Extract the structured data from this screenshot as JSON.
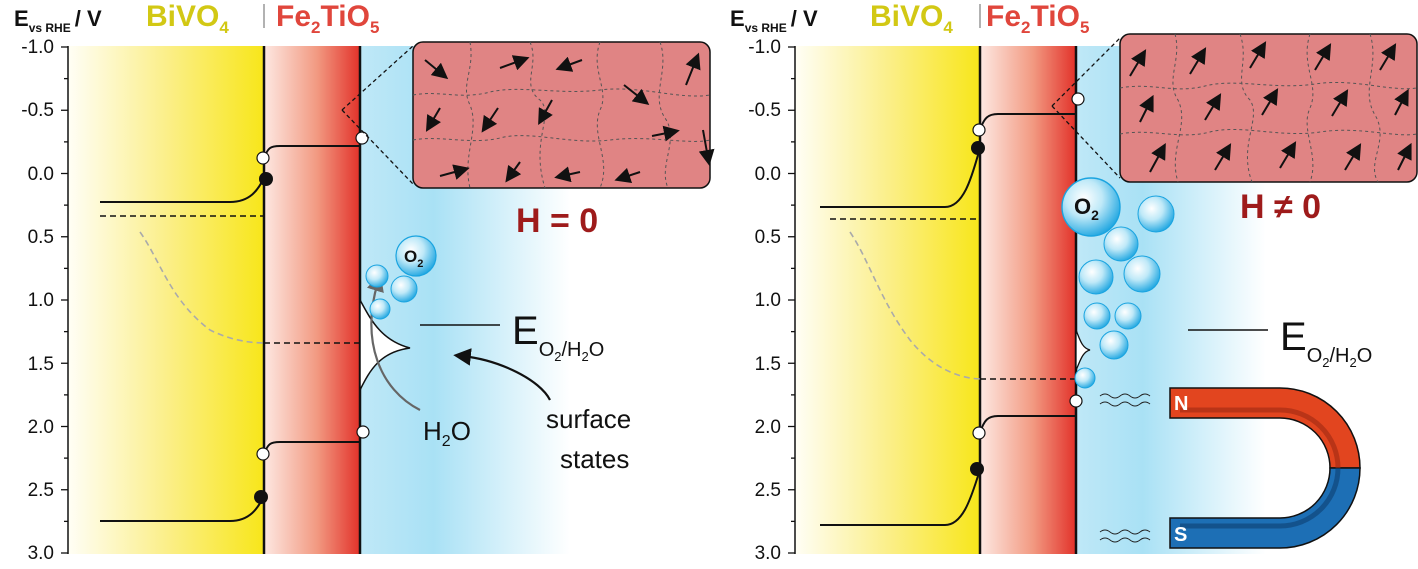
{
  "axis": {
    "label_main": "E",
    "label_sub": "vs RHE",
    "label_unit": "/ V",
    "ticks": [
      "-1.0",
      "-0.5",
      "0.0",
      "0.5",
      "1.0",
      "1.5",
      "2.0",
      "2.5",
      "3.0"
    ]
  },
  "materials": {
    "bivo4_base": "BiVO",
    "bivo4_sub": "4",
    "fe_a": "Fe",
    "fe_sub2": "2",
    "fe_b": "TiO",
    "fe_sub5": "5"
  },
  "left_panel": {
    "field_label": "H = 0",
    "o2_label": "O",
    "o2_sub": "2",
    "h2o_label": "H",
    "h2o_sub": "2",
    "h2o_end": "O",
    "surface_states_line1": "surface",
    "surface_states_line2": "states"
  },
  "right_panel": {
    "field_label": "H ≠ 0",
    "o2_label": "O",
    "o2_sub": "2",
    "magnet_north": "N",
    "magnet_south": "S"
  },
  "redox": {
    "label_main": "E",
    "label_sub": "O",
    "label_sub2": "2",
    "label_sub3": "/H",
    "label_sub4": "2",
    "label_sub5": "O"
  },
  "colors": {
    "bivo4_text": "#d2c814",
    "fe2tio5_text": "#e0463c",
    "field_text": "#9e1b1b",
    "electrolyte": "#aee3f5",
    "grain_fill": "#e08484",
    "magnet_north": "#e2451f",
    "magnet_south": "#1d6fb5"
  }
}
